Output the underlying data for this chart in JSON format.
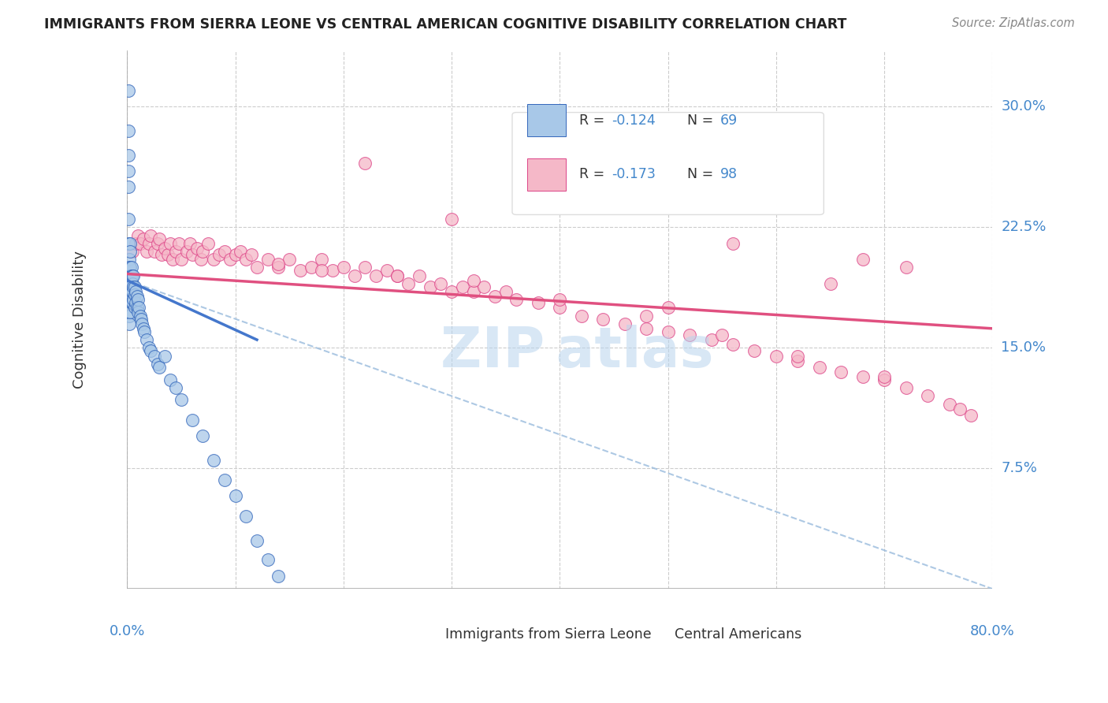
{
  "title": "IMMIGRANTS FROM SIERRA LEONE VS CENTRAL AMERICAN COGNITIVE DISABILITY CORRELATION CHART",
  "source": "Source: ZipAtlas.com",
  "ylabel": "Cognitive Disability",
  "color_blue": "#a8c8e8",
  "color_pink": "#f5b8c8",
  "color_blue_line": "#4477cc",
  "color_pink_line": "#e05080",
  "color_blue_dark": "#3366bb",
  "color_pink_dark": "#dd4488",
  "watermark_color": "#b8d8f0",
  "legend_r1": "R = -0.124",
  "legend_n1": "N = 69",
  "legend_r2": "R = -0.173",
  "legend_n2": "N = 98",
  "xlim": [
    0.0,
    0.8
  ],
  "ylim": [
    0.0,
    0.335
  ],
  "ytick_positions": [
    0.0,
    0.075,
    0.15,
    0.225,
    0.3
  ],
  "ytick_labels": [
    "",
    "7.5%",
    "15.0%",
    "22.5%",
    "30.0%"
  ],
  "xtick_positions": [
    0.0,
    0.1,
    0.2,
    0.3,
    0.4,
    0.5,
    0.6,
    0.7,
    0.8
  ],
  "sl_x": [
    0.001,
    0.001,
    0.001,
    0.001,
    0.001,
    0.001,
    0.001,
    0.002,
    0.002,
    0.002,
    0.002,
    0.002,
    0.002,
    0.002,
    0.002,
    0.002,
    0.003,
    0.003,
    0.003,
    0.003,
    0.003,
    0.003,
    0.003,
    0.003,
    0.004,
    0.004,
    0.004,
    0.004,
    0.005,
    0.005,
    0.005,
    0.005,
    0.006,
    0.006,
    0.006,
    0.007,
    0.007,
    0.007,
    0.008,
    0.008,
    0.009,
    0.009,
    0.01,
    0.01,
    0.011,
    0.012,
    0.013,
    0.014,
    0.015,
    0.016,
    0.018,
    0.02,
    0.022,
    0.025,
    0.028,
    0.03,
    0.035,
    0.04,
    0.045,
    0.05,
    0.06,
    0.07,
    0.08,
    0.09,
    0.1,
    0.11,
    0.12,
    0.13,
    0.14
  ],
  "sl_y": [
    0.31,
    0.285,
    0.27,
    0.26,
    0.25,
    0.23,
    0.215,
    0.205,
    0.2,
    0.195,
    0.19,
    0.186,
    0.182,
    0.178,
    0.17,
    0.165,
    0.215,
    0.21,
    0.2,
    0.195,
    0.19,
    0.185,
    0.18,
    0.172,
    0.2,
    0.195,
    0.185,
    0.178,
    0.195,
    0.19,
    0.185,
    0.178,
    0.195,
    0.188,
    0.18,
    0.188,
    0.183,
    0.175,
    0.185,
    0.178,
    0.182,
    0.175,
    0.18,
    0.172,
    0.175,
    0.17,
    0.168,
    0.165,
    0.162,
    0.16,
    0.155,
    0.15,
    0.148,
    0.145,
    0.14,
    0.138,
    0.145,
    0.13,
    0.125,
    0.118,
    0.105,
    0.095,
    0.08,
    0.068,
    0.058,
    0.045,
    0.03,
    0.018,
    0.008
  ],
  "ca_x": [
    0.005,
    0.008,
    0.01,
    0.012,
    0.015,
    0.018,
    0.02,
    0.022,
    0.025,
    0.028,
    0.03,
    0.032,
    0.035,
    0.038,
    0.04,
    0.042,
    0.045,
    0.048,
    0.05,
    0.055,
    0.058,
    0.06,
    0.065,
    0.068,
    0.07,
    0.075,
    0.08,
    0.085,
    0.09,
    0.095,
    0.1,
    0.105,
    0.11,
    0.115,
    0.12,
    0.13,
    0.14,
    0.15,
    0.16,
    0.17,
    0.18,
    0.19,
    0.2,
    0.21,
    0.22,
    0.23,
    0.24,
    0.25,
    0.26,
    0.27,
    0.28,
    0.29,
    0.3,
    0.31,
    0.32,
    0.33,
    0.34,
    0.35,
    0.36,
    0.38,
    0.4,
    0.42,
    0.44,
    0.46,
    0.48,
    0.5,
    0.52,
    0.54,
    0.56,
    0.58,
    0.6,
    0.62,
    0.64,
    0.66,
    0.68,
    0.7,
    0.72,
    0.74,
    0.76,
    0.78,
    0.22,
    0.45,
    0.3,
    0.56,
    0.68,
    0.72,
    0.65,
    0.4,
    0.48,
    0.55,
    0.62,
    0.7,
    0.77,
    0.5,
    0.32,
    0.25,
    0.18,
    0.14
  ],
  "ca_y": [
    0.21,
    0.215,
    0.22,
    0.215,
    0.218,
    0.21,
    0.215,
    0.22,
    0.21,
    0.215,
    0.218,
    0.208,
    0.212,
    0.208,
    0.215,
    0.205,
    0.21,
    0.215,
    0.205,
    0.21,
    0.215,
    0.208,
    0.212,
    0.205,
    0.21,
    0.215,
    0.205,
    0.208,
    0.21,
    0.205,
    0.208,
    0.21,
    0.205,
    0.208,
    0.2,
    0.205,
    0.2,
    0.205,
    0.198,
    0.2,
    0.205,
    0.198,
    0.2,
    0.195,
    0.2,
    0.195,
    0.198,
    0.195,
    0.19,
    0.195,
    0.188,
    0.19,
    0.185,
    0.188,
    0.185,
    0.188,
    0.182,
    0.185,
    0.18,
    0.178,
    0.175,
    0.17,
    0.168,
    0.165,
    0.162,
    0.16,
    0.158,
    0.155,
    0.152,
    0.148,
    0.145,
    0.142,
    0.138,
    0.135,
    0.132,
    0.13,
    0.125,
    0.12,
    0.115,
    0.108,
    0.265,
    0.24,
    0.23,
    0.215,
    0.205,
    0.2,
    0.19,
    0.18,
    0.17,
    0.158,
    0.145,
    0.132,
    0.112,
    0.175,
    0.192,
    0.195,
    0.198,
    0.202
  ],
  "sl_trend_x": [
    0.0,
    0.12
  ],
  "sl_trend_y": [
    0.192,
    0.155
  ],
  "ca_trend_x": [
    0.0,
    0.8
  ],
  "ca_trend_y": [
    0.196,
    0.162
  ],
  "dash_line_x": [
    0.0,
    0.8
  ],
  "dash_line_y": [
    0.192,
    0.0
  ]
}
